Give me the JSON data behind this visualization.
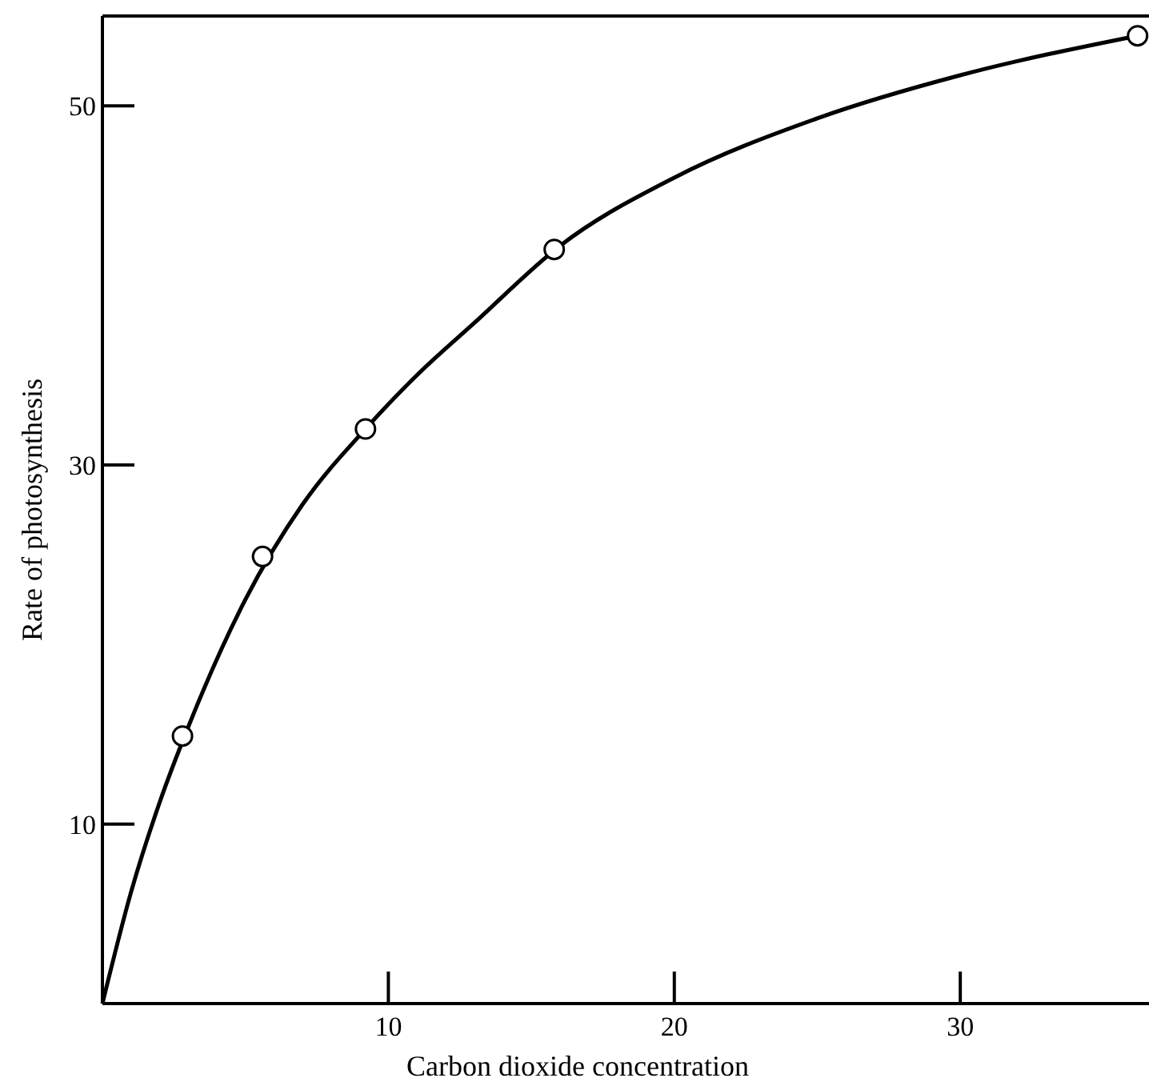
{
  "chart_data": {
    "type": "scatter",
    "xlabel": "Carbon dioxide concentration",
    "ylabel": "Rate of photosynthesis",
    "xlim": [
      0,
      36.6
    ],
    "ylim": [
      0,
      55
    ],
    "xticks": [
      10,
      20,
      30
    ],
    "yticks": [
      10,
      30,
      50
    ],
    "grid": false,
    "series": [
      {
        "type": "line",
        "color": "#000000",
        "marker": "none",
        "line_style": "solid",
        "x": [
          0,
          1,
          2,
          3,
          5,
          7,
          9.2,
          11,
          13,
          16,
          20,
          25,
          30,
          36.2
        ],
        "values": [
          0,
          6.2,
          11.2,
          15.4,
          22.5,
          27.8,
          32.0,
          35.0,
          37.9,
          42.2,
          46.0,
          49.3,
          51.7,
          53.9
        ]
      },
      {
        "color": "#000000",
        "marker": "circle",
        "x": [
          2.8,
          5.6,
          9.2,
          15.8,
          36.2
        ],
        "values": [
          14.9,
          24.9,
          32.0,
          42.0,
          53.9
        ]
      }
    ]
  }
}
